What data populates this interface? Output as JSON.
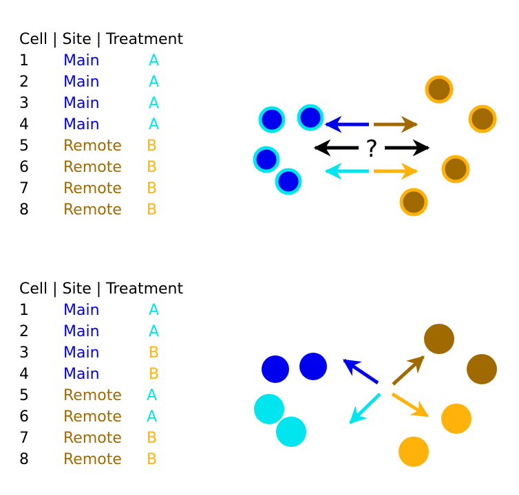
{
  "colors": {
    "main": "#0000ee",
    "remote": "#a06a00",
    "treatment_a": "#00e5ee",
    "treatment_b": "#ffb20a",
    "black": "#000000"
  },
  "panels": [
    {
      "header": "Cell | Site | Treatment",
      "rows": [
        {
          "cell": "1",
          "site": "Main",
          "treatment": "A"
        },
        {
          "cell": "2",
          "site": "Main",
          "treatment": "A"
        },
        {
          "cell": "3",
          "site": "Main",
          "treatment": "A"
        },
        {
          "cell": "4",
          "site": "Main",
          "treatment": "A"
        },
        {
          "cell": "5",
          "site": "Remote",
          "treatment": "B"
        },
        {
          "cell": "6",
          "site": "Remote",
          "treatment": "B"
        },
        {
          "cell": "7",
          "site": "Remote",
          "treatment": "B"
        },
        {
          "cell": "8",
          "site": "Remote",
          "treatment": "B"
        }
      ],
      "question_mark": "?"
    },
    {
      "header": "Cell | Site | Treatment",
      "rows": [
        {
          "cell": "1",
          "site": "Main",
          "treatment": "A"
        },
        {
          "cell": "2",
          "site": "Main",
          "treatment": "A"
        },
        {
          "cell": "3",
          "site": "Main",
          "treatment": "B"
        },
        {
          "cell": "4",
          "site": "Main",
          "treatment": "B"
        },
        {
          "cell": "5",
          "site": "Remote",
          "treatment": "A"
        },
        {
          "cell": "6",
          "site": "Remote",
          "treatment": "A"
        },
        {
          "cell": "7",
          "site": "Remote",
          "treatment": "B"
        },
        {
          "cell": "8",
          "site": "Remote",
          "treatment": "B"
        }
      ]
    }
  ]
}
